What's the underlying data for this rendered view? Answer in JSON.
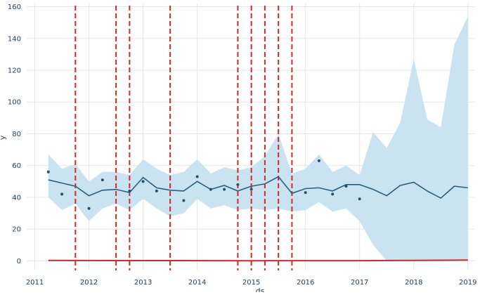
{
  "chart_data": {
    "type": "line",
    "title": "",
    "xlabel": "ds",
    "ylabel": "y",
    "xlim": [
      2010.85,
      2019.12
    ],
    "ylim": [
      -6,
      162
    ],
    "grid": true,
    "legend": "none",
    "x_ticks": [
      2011,
      2012,
      2013,
      2014,
      2015,
      2016,
      2017,
      2018,
      2019
    ],
    "x_tick_labels": [
      "2011",
      "2012",
      "2013",
      "2014",
      "2015",
      "2016",
      "2017",
      "2018",
      "2019"
    ],
    "y_ticks": [
      0,
      20,
      40,
      60,
      80,
      100,
      120,
      140,
      160
    ],
    "y_tick_labels": [
      "0",
      "20",
      "40",
      "60",
      "80",
      "100",
      "120",
      "140",
      "160"
    ],
    "colors": {
      "forecast_line": "#2c5f7e",
      "uncertainty_band": "#c6e1ef",
      "observed_points": "#2c4f68",
      "changepoint_lines": "#d62728",
      "trend_line": "#d62728",
      "grid": "#e5e5e5",
      "tick_text": "#1f3b57"
    },
    "series": [
      {
        "name": "observed",
        "kind": "scatter",
        "x": [
          2011.25,
          2011.5,
          2012.0,
          2012.25,
          2012.75,
          2013.0,
          2013.25,
          2013.75,
          2014.0,
          2014.25,
          2014.5,
          2014.75,
          2015.0,
          2016.0,
          2016.25,
          2016.5,
          2016.75,
          2017.0
        ],
        "y": [
          56,
          42,
          33,
          51,
          44,
          50,
          44,
          38,
          53,
          45,
          45,
          48,
          45,
          43,
          63,
          42,
          47,
          39
        ]
      },
      {
        "name": "yhat",
        "kind": "line",
        "x": [
          2011.25,
          2011.5,
          2011.75,
          2012.0,
          2012.25,
          2012.5,
          2012.75,
          2013.0,
          2013.25,
          2013.5,
          2013.75,
          2014.0,
          2014.25,
          2014.5,
          2014.75,
          2015.0,
          2015.25,
          2015.5,
          2015.75,
          2016.0,
          2016.25,
          2016.5,
          2016.75,
          2017.0,
          2017.25,
          2017.5,
          2017.75,
          2018.0,
          2018.25,
          2018.5,
          2018.75,
          2019.0
        ],
        "y": [
          51,
          49,
          47,
          41,
          44.5,
          45,
          43,
          52.5,
          46,
          44.5,
          44,
          50,
          45,
          47.5,
          44,
          47,
          48.5,
          53,
          42.5,
          45.5,
          46,
          44,
          48,
          48,
          45,
          41,
          47.5,
          49.5,
          44,
          39.5,
          47,
          46
        ]
      },
      {
        "name": "yhat_lower",
        "kind": "band_lower",
        "x": [
          2011.25,
          2011.5,
          2011.75,
          2012.0,
          2012.25,
          2012.5,
          2012.75,
          2013.0,
          2013.25,
          2013.5,
          2013.75,
          2014.0,
          2014.25,
          2014.5,
          2014.75,
          2015.0,
          2015.25,
          2015.5,
          2015.75,
          2016.0,
          2016.25,
          2016.5,
          2016.75,
          2017.0,
          2017.25,
          2017.5,
          2017.75,
          2018.0,
          2018.25,
          2018.5,
          2018.75,
          2019.0
        ],
        "y": [
          40,
          32,
          36,
          25,
          33,
          36,
          32,
          39,
          33,
          28,
          30,
          39,
          33,
          35,
          32,
          33,
          32,
          33,
          31,
          32,
          37,
          31,
          33,
          25,
          10,
          0,
          0,
          0,
          0,
          0,
          0,
          0
        ]
      },
      {
        "name": "yhat_upper",
        "kind": "band_upper",
        "x": [
          2011.25,
          2011.5,
          2011.75,
          2012.0,
          2012.25,
          2012.5,
          2012.75,
          2013.0,
          2013.25,
          2013.5,
          2013.75,
          2014.0,
          2014.25,
          2014.5,
          2014.75,
          2015.0,
          2015.25,
          2015.5,
          2015.75,
          2016.0,
          2016.25,
          2016.5,
          2016.75,
          2017.0,
          2017.25,
          2017.5,
          2017.75,
          2018.0,
          2018.25,
          2018.5,
          2018.75,
          2019.0
        ],
        "y": [
          67,
          58,
          61,
          50,
          56,
          56,
          54,
          64,
          58,
          54,
          56,
          64,
          55,
          59,
          57,
          59,
          66,
          80,
          55,
          58,
          67,
          56,
          60,
          54,
          81,
          71,
          87,
          127,
          89,
          84,
          136,
          154
        ]
      },
      {
        "name": "trend",
        "kind": "line",
        "x": [
          2011.25,
          2013.0,
          2015.0,
          2017.0,
          2019.0
        ],
        "y": [
          0.3,
          0.2,
          0.1,
          0.15,
          0.5
        ]
      }
    ],
    "changepoints": [
      2011.75,
      2012.5,
      2012.75,
      2013.5,
      2014.75,
      2015.0,
      2015.25,
      2015.5,
      2015.75
    ]
  }
}
